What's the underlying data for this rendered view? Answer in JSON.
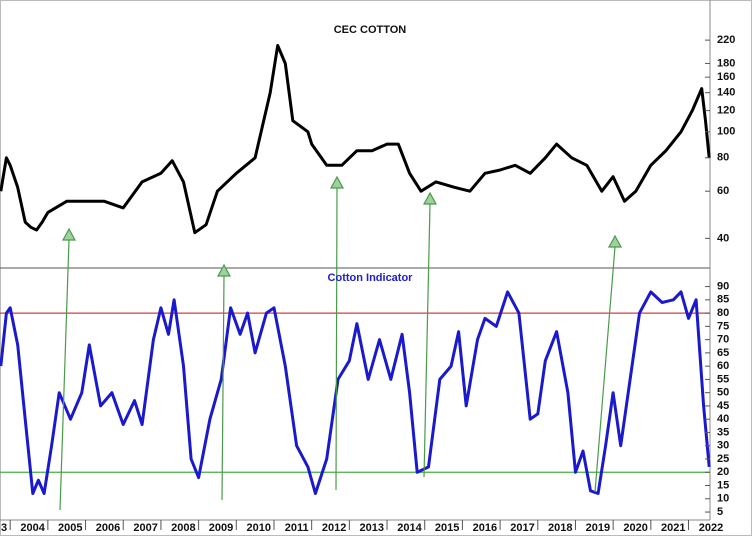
{
  "chart_data": [
    {
      "type": "line",
      "title": "CEC COTTON",
      "log": true,
      "ylim": [
        31,
        290
      ],
      "xlim": [
        2003.73,
        2022.57
      ],
      "yticks": [
        40,
        60,
        80,
        100,
        120,
        140,
        160,
        180,
        220
      ],
      "series": [
        {
          "color": "#000000",
          "x": [
            2003.75,
            2003.9,
            2004.0,
            2004.2,
            2004.4,
            2004.55,
            2004.7,
            2004.85,
            2005.0,
            2005.5,
            2006.0,
            2006.5,
            2007.0,
            2007.5,
            2008.0,
            2008.3,
            2008.6,
            2008.9,
            2009.2,
            2009.5,
            2010.0,
            2010.5,
            2010.9,
            2011.1,
            2011.3,
            2011.5,
            2011.9,
            2012.0,
            2012.4,
            2012.8,
            2013.2,
            2013.6,
            2014.0,
            2014.3,
            2014.6,
            2014.9,
            2015.3,
            2015.8,
            2016.2,
            2016.6,
            2017.0,
            2017.4,
            2017.8,
            2018.2,
            2018.5,
            2018.9,
            2019.3,
            2019.7,
            2020.0,
            2020.3,
            2020.6,
            2021.0,
            2021.4,
            2021.8,
            2022.1,
            2022.35,
            2022.45,
            2022.55
          ],
          "values": [
            60,
            80,
            75,
            62,
            46,
            44,
            43,
            46,
            50,
            55,
            55,
            55,
            52,
            65,
            70,
            78,
            65,
            42,
            45,
            60,
            70,
            80,
            140,
            210,
            180,
            110,
            100,
            90,
            75,
            75,
            85,
            85,
            90,
            90,
            70,
            60,
            65,
            62,
            60,
            70,
            72,
            75,
            70,
            80,
            90,
            80,
            75,
            60,
            68,
            55,
            60,
            75,
            85,
            100,
            120,
            145,
            110,
            80
          ]
        }
      ]
    },
    {
      "type": "line",
      "title": "Cotton Indicator",
      "ylim": [
        2,
        97
      ],
      "xlim": [
        2003.73,
        2022.57
      ],
      "yticks": [
        5,
        10,
        15,
        20,
        25,
        30,
        35,
        40,
        45,
        50,
        55,
        60,
        65,
        70,
        75,
        80,
        85,
        90
      ],
      "hlines": [
        {
          "value": 80,
          "color": "#d04040"
        },
        {
          "value": 20,
          "color": "#40b040"
        }
      ],
      "xticks": [
        {
          "value": 2003,
          "label": "3"
        },
        2004,
        2005,
        2006,
        2007,
        2008,
        2009,
        2010,
        2011,
        2012,
        2013,
        2014,
        2015,
        2016,
        2017,
        2018,
        2019,
        2020,
        2021,
        2022
      ],
      "series": [
        {
          "color": "#1a1acc",
          "x": [
            2003.75,
            2003.9,
            2004.0,
            2004.2,
            2004.4,
            2004.6,
            2004.75,
            2004.9,
            2005.1,
            2005.3,
            2005.6,
            2005.9,
            2006.1,
            2006.4,
            2006.7,
            2007.0,
            2007.3,
            2007.5,
            2007.8,
            2008.0,
            2008.2,
            2008.35,
            2008.6,
            2008.8,
            2009.0,
            2009.3,
            2009.6,
            2009.85,
            2010.1,
            2010.3,
            2010.5,
            2010.8,
            2011.0,
            2011.3,
            2011.6,
            2011.9,
            2012.1,
            2012.4,
            2012.7,
            2013.0,
            2013.2,
            2013.5,
            2013.8,
            2014.1,
            2014.4,
            2014.6,
            2014.8,
            2015.1,
            2015.4,
            2015.7,
            2015.9,
            2016.1,
            2016.4,
            2016.6,
            2016.9,
            2017.2,
            2017.5,
            2017.8,
            2018.0,
            2018.2,
            2018.5,
            2018.8,
            2019.0,
            2019.2,
            2019.4,
            2019.6,
            2019.8,
            2020.0,
            2020.2,
            2020.5,
            2020.7,
            2021.0,
            2021.3,
            2021.6,
            2021.8,
            2022.0,
            2022.2,
            2022.4,
            2022.55
          ],
          "values": [
            60,
            80,
            82,
            68,
            40,
            12,
            17,
            12,
            30,
            50,
            40,
            50,
            68,
            45,
            50,
            38,
            47,
            38,
            70,
            82,
            72,
            85,
            60,
            25,
            18,
            40,
            55,
            82,
            72,
            80,
            65,
            80,
            82,
            60,
            30,
            22,
            12,
            25,
            55,
            62,
            76,
            55,
            70,
            55,
            72,
            50,
            20,
            22,
            55,
            60,
            73,
            45,
            70,
            78,
            75,
            88,
            80,
            40,
            42,
            62,
            73,
            50,
            20,
            28,
            13,
            12,
            30,
            50,
            30,
            60,
            80,
            88,
            84,
            85,
            88,
            78,
            85,
            45,
            22
          ]
        }
      ]
    }
  ]
}
